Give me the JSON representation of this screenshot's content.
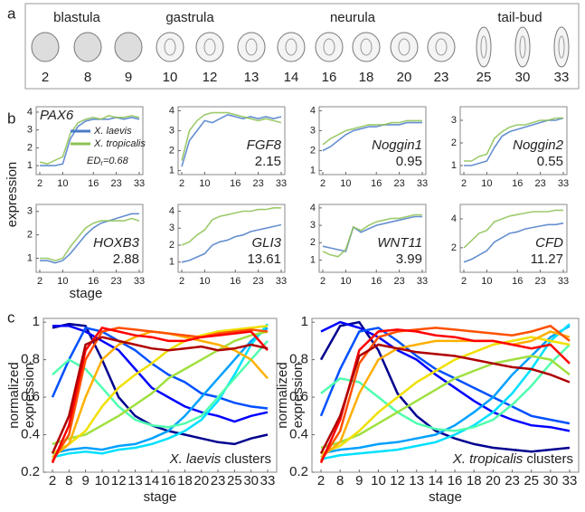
{
  "panel_labels": [
    "a",
    "b",
    "c"
  ],
  "stage_panel": {
    "phases": [
      "blastula",
      "gastrula",
      "neurula",
      "tail-bud"
    ],
    "stages": [
      "2",
      "8",
      "9",
      "10",
      "12",
      "13",
      "14",
      "16",
      "18",
      "20",
      "23",
      "25",
      "30",
      "33"
    ]
  },
  "b_ylabel": "expression",
  "chart_data": [
    {
      "type": "line",
      "gene": "PAX6",
      "annotation_parts": [
        "ED",
        "r",
        "=0.68"
      ],
      "categories": [
        "2",
        null,
        null,
        "10",
        null,
        null,
        null,
        "16",
        null,
        null,
        "23",
        null,
        null,
        "33"
      ],
      "ylim": [
        0.5,
        4.3
      ],
      "yticks": [
        1,
        2,
        3,
        4
      ],
      "series": [
        {
          "name": "X. laevis",
          "color": "#4a7bc8",
          "values": [
            1,
            1,
            1,
            1.1,
            2.5,
            3.2,
            3.5,
            3.6,
            3.6,
            3.6,
            3.7,
            3.6,
            3.7,
            3.6
          ]
        },
        {
          "name": "X. tropicalis",
          "color": "#8cc152",
          "values": [
            1.2,
            1.1,
            1.3,
            1.5,
            2.8,
            3.4,
            3.6,
            3.7,
            3.6,
            3.8,
            3.7,
            3.7,
            3.8,
            3.7
          ]
        }
      ]
    },
    {
      "type": "line",
      "gene": "FGF8",
      "annotation": "2.15",
      "categories": [
        "2",
        null,
        null,
        "10",
        null,
        null,
        null,
        "16",
        null,
        null,
        "23",
        null,
        null,
        "33"
      ],
      "ylim": [
        0.8,
        4.2
      ],
      "yticks": [
        1,
        2,
        3,
        4
      ],
      "series": [
        {
          "color": "#4a7bc8",
          "values": [
            1.2,
            2.5,
            3,
            3.5,
            3.4,
            3.6,
            3.8,
            3.7,
            3.6,
            3.7,
            3.6,
            3.7,
            3.6,
            3.7
          ]
        },
        {
          "color": "#8cc152",
          "values": [
            1.5,
            3,
            3.5,
            3.8,
            3.9,
            3.9,
            3.9,
            3.8,
            3.7,
            3.6,
            3.5,
            3.6,
            3.5,
            3.4
          ]
        }
      ]
    },
    {
      "type": "line",
      "gene": "Noggin1",
      "annotation": "0.95",
      "categories": [
        "2",
        null,
        null,
        "10",
        null,
        null,
        null,
        "16",
        null,
        null,
        "23",
        null,
        null,
        "33"
      ],
      "ylim": [
        0.8,
        4.2
      ],
      "yticks": [
        1,
        2,
        3,
        4
      ],
      "series": [
        {
          "color": "#4a7bc8",
          "values": [
            2,
            2.2,
            2.5,
            2.8,
            3,
            3.1,
            3.2,
            3.2,
            3.3,
            3.3,
            3.3,
            3.4,
            3.4,
            3.4
          ]
        },
        {
          "color": "#8cc152",
          "values": [
            2.3,
            2.6,
            2.8,
            3,
            3.1,
            3.2,
            3.3,
            3.3,
            3.3,
            3.4,
            3.4,
            3.5,
            3.5,
            3.5
          ]
        }
      ]
    },
    {
      "type": "line",
      "gene": "Noggin2",
      "annotation": "0.55",
      "categories": [
        "2",
        null,
        null,
        "10",
        null,
        null,
        null,
        "16",
        null,
        null,
        "23",
        null,
        null,
        "33"
      ],
      "ylim": [
        0.6,
        3.6
      ],
      "yticks": [
        1,
        2,
        3
      ],
      "series": [
        {
          "color": "#4a7bc8",
          "values": [
            1,
            1,
            1.1,
            1.2,
            1.8,
            2.3,
            2.5,
            2.6,
            2.7,
            2.8,
            2.9,
            3,
            3,
            3.1
          ]
        },
        {
          "color": "#8cc152",
          "values": [
            1.2,
            1.2,
            1.4,
            1.5,
            2.2,
            2.5,
            2.7,
            2.8,
            2.8,
            2.9,
            3,
            3,
            3.1,
            3.1
          ]
        }
      ]
    },
    {
      "type": "line",
      "gene": "HOXB3",
      "annotation": "2.88",
      "xlabel": "stage",
      "categories": [
        "2",
        null,
        null,
        "10",
        null,
        null,
        null,
        "16",
        null,
        null,
        "23",
        null,
        null,
        "33"
      ],
      "ylim": [
        0.4,
        3.3
      ],
      "yticks": [
        1,
        2,
        3
      ],
      "series": [
        {
          "color": "#4a7bc8",
          "values": [
            0.9,
            0.9,
            0.8,
            0.9,
            1.2,
            1.6,
            2,
            2.3,
            2.5,
            2.6,
            2.7,
            2.8,
            2.9,
            2.9
          ]
        },
        {
          "color": "#8cc152",
          "values": [
            1,
            1,
            0.9,
            1,
            1.5,
            1.9,
            2.3,
            2.5,
            2.6,
            2.6,
            2.6,
            2.6,
            2.7,
            2.6
          ]
        }
      ]
    },
    {
      "type": "line",
      "gene": "GLI3",
      "annotation": "13.61",
      "categories": [
        "2",
        null,
        null,
        "10",
        null,
        null,
        null,
        "16",
        null,
        null,
        "23",
        null,
        null,
        "33"
      ],
      "ylim": [
        0.4,
        4.4
      ],
      "yticks": [
        1,
        2,
        3,
        4
      ],
      "series": [
        {
          "color": "#4a7bc8",
          "values": [
            1,
            1.1,
            1.3,
            1.5,
            2,
            2.2,
            2.3,
            2.5,
            2.6,
            2.8,
            2.9,
            3,
            3.1,
            3.2
          ]
        },
        {
          "color": "#8cc152",
          "values": [
            2,
            2.2,
            2.6,
            2.9,
            3.5,
            3.7,
            3.8,
            3.9,
            4,
            4,
            4.1,
            4.1,
            4.2,
            4.2
          ]
        }
      ]
    },
    {
      "type": "line",
      "gene": "WNT11",
      "annotation": "3.99",
      "categories": [
        "2",
        null,
        null,
        "10",
        null,
        null,
        null,
        "16",
        null,
        null,
        "23",
        null,
        null,
        "33"
      ],
      "ylim": [
        0.3,
        4.2
      ],
      "yticks": [
        1,
        2,
        3,
        4
      ],
      "series": [
        {
          "color": "#4a7bc8",
          "values": [
            1.8,
            1.7,
            1.6,
            1.5,
            2.9,
            2.6,
            2.8,
            3,
            3.1,
            3.2,
            3.3,
            3.4,
            3.5,
            3.5
          ]
        },
        {
          "color": "#8cc152",
          "values": [
            1.5,
            1.3,
            1.2,
            1.6,
            2.9,
            2.7,
            3,
            3.2,
            3.3,
            3.4,
            3.4,
            3.5,
            3.6,
            3.6
          ]
        }
      ]
    },
    {
      "type": "line",
      "gene": "CFD",
      "annotation": "11.27",
      "categories": [
        "2",
        null,
        null,
        "10",
        null,
        null,
        null,
        "16",
        null,
        null,
        "23",
        null,
        null,
        "33"
      ],
      "ylim": [
        0.3,
        5
      ],
      "yticks": [
        2,
        4
      ],
      "series": [
        {
          "color": "#4a7bc8",
          "values": [
            1,
            1.2,
            1.5,
            1.8,
            2.4,
            2.7,
            3,
            3.1,
            3.3,
            3.4,
            3.5,
            3.6,
            3.6,
            3.7
          ]
        },
        {
          "color": "#8cc152",
          "values": [
            2,
            2.5,
            3,
            3.2,
            3.8,
            4,
            4.2,
            4.3,
            4.4,
            4.5,
            4.5,
            4.5,
            4.6,
            4.6
          ]
        }
      ]
    },
    {
      "type": "line",
      "title_parts": [
        "X. laevis",
        "clusters"
      ],
      "ylabel": [
        "normalized",
        "expression"
      ],
      "xlabel": "stage",
      "categories": [
        "2",
        "8",
        "9",
        "10",
        "12",
        "13",
        "14",
        "16",
        "18",
        "20",
        "23",
        "25",
        "30",
        "33"
      ],
      "ylim": [
        0.2,
        1.02
      ],
      "yticks": [
        0.2,
        0.4,
        0.6,
        0.8,
        1
      ],
      "series": [
        {
          "color": "#00008f",
          "values": [
            0.97,
            0.99,
            0.98,
            0.8,
            0.6,
            0.5,
            0.45,
            0.42,
            0.4,
            0.38,
            0.36,
            0.35,
            0.38,
            0.4
          ]
        },
        {
          "color": "#0000ff",
          "values": [
            0.98,
            0.98,
            0.95,
            0.9,
            0.85,
            0.75,
            0.65,
            0.6,
            0.55,
            0.52,
            0.5,
            0.47,
            0.5,
            0.52
          ]
        },
        {
          "color": "#0050ff",
          "values": [
            0.6,
            0.8,
            0.97,
            0.95,
            0.9,
            0.85,
            0.78,
            0.72,
            0.68,
            0.62,
            0.6,
            0.57,
            0.55,
            0.54
          ]
        },
        {
          "color": "#00a0ff",
          "values": [
            0.3,
            0.32,
            0.33,
            0.32,
            0.34,
            0.35,
            0.38,
            0.42,
            0.5,
            0.6,
            0.7,
            0.8,
            0.9,
            0.97
          ]
        },
        {
          "color": "#00e0ff",
          "values": [
            0.28,
            0.3,
            0.31,
            0.3,
            0.32,
            0.33,
            0.35,
            0.38,
            0.42,
            0.48,
            0.58,
            0.72,
            0.88,
            0.99
          ]
        },
        {
          "color": "#50ffaf",
          "values": [
            0.72,
            0.8,
            0.75,
            0.65,
            0.55,
            0.48,
            0.45,
            0.44,
            0.46,
            0.5,
            0.6,
            0.7,
            0.8,
            0.9
          ]
        },
        {
          "color": "#a0e040",
          "values": [
            0.35,
            0.38,
            0.4,
            0.45,
            0.5,
            0.56,
            0.62,
            0.7,
            0.75,
            0.8,
            0.85,
            0.9,
            0.93,
            0.95
          ]
        },
        {
          "color": "#f0e000",
          "values": [
            0.3,
            0.35,
            0.42,
            0.55,
            0.65,
            0.72,
            0.78,
            0.85,
            0.9,
            0.93,
            0.95,
            0.96,
            0.97,
            0.98
          ]
        },
        {
          "color": "#ffaf00",
          "values": [
            0.28,
            0.35,
            0.6,
            0.8,
            0.88,
            0.92,
            0.95,
            0.94,
            0.92,
            0.9,
            0.88,
            0.85,
            0.8,
            0.7
          ]
        },
        {
          "color": "#ff5000",
          "values": [
            0.26,
            0.4,
            0.8,
            0.95,
            0.97,
            0.96,
            0.95,
            0.94,
            0.93,
            0.92,
            0.94,
            0.95,
            0.96,
            0.95
          ]
        },
        {
          "color": "#ff0000",
          "values": [
            0.25,
            0.45,
            0.85,
            0.97,
            0.95,
            0.93,
            0.92,
            0.9,
            0.9,
            0.92,
            0.93,
            0.94,
            0.95,
            0.85
          ]
        },
        {
          "color": "#af0000",
          "values": [
            0.3,
            0.5,
            0.88,
            0.92,
            0.9,
            0.88,
            0.86,
            0.85,
            0.86,
            0.87,
            0.85,
            0.86,
            0.88,
            0.86
          ]
        }
      ]
    },
    {
      "type": "line",
      "title_parts": [
        "X. tropicalis",
        "clusters"
      ],
      "ylabel": [
        "normalized",
        "expression"
      ],
      "xlabel": "stage",
      "categories": [
        "2",
        "8",
        "9",
        "10",
        "12",
        "13",
        "14",
        "16",
        "18",
        "20",
        "23",
        "25",
        "30",
        "33"
      ],
      "ylim": [
        0.2,
        1.02
      ],
      "yticks": [
        0.2,
        0.4,
        0.6,
        0.8,
        1
      ],
      "series": [
        {
          "color": "#00008f",
          "values": [
            0.8,
            0.98,
            1,
            0.85,
            0.62,
            0.5,
            0.42,
            0.38,
            0.35,
            0.33,
            0.32,
            0.31,
            0.32,
            0.33
          ]
        },
        {
          "color": "#0000ff",
          "values": [
            0.95,
            1,
            0.97,
            0.92,
            0.85,
            0.8,
            0.72,
            0.65,
            0.58,
            0.52,
            0.48,
            0.45,
            0.44,
            0.42
          ]
        },
        {
          "color": "#0050ff",
          "values": [
            0.5,
            0.75,
            0.95,
            0.97,
            0.9,
            0.82,
            0.75,
            0.7,
            0.65,
            0.6,
            0.55,
            0.5,
            0.48,
            0.46
          ]
        },
        {
          "color": "#00a0ff",
          "values": [
            0.3,
            0.32,
            0.33,
            0.35,
            0.36,
            0.38,
            0.4,
            0.45,
            0.52,
            0.6,
            0.72,
            0.82,
            0.92,
            0.98
          ]
        },
        {
          "color": "#00e0ff",
          "values": [
            0.27,
            0.29,
            0.3,
            0.31,
            0.32,
            0.34,
            0.36,
            0.4,
            0.45,
            0.52,
            0.62,
            0.75,
            0.9,
            0.99
          ]
        },
        {
          "color": "#50ffaf",
          "values": [
            0.62,
            0.7,
            0.68,
            0.6,
            0.52,
            0.46,
            0.43,
            0.42,
            0.44,
            0.48,
            0.56,
            0.66,
            0.78,
            0.88
          ]
        },
        {
          "color": "#a0e040",
          "values": [
            0.33,
            0.36,
            0.4,
            0.46,
            0.52,
            0.58,
            0.64,
            0.7,
            0.74,
            0.78,
            0.8,
            0.82,
            0.8,
            0.72
          ]
        },
        {
          "color": "#f0e000",
          "values": [
            0.3,
            0.34,
            0.42,
            0.52,
            0.6,
            0.68,
            0.74,
            0.8,
            0.84,
            0.88,
            0.9,
            0.92,
            0.9,
            0.88
          ]
        },
        {
          "color": "#ffaf00",
          "values": [
            0.28,
            0.36,
            0.62,
            0.8,
            0.86,
            0.88,
            0.9,
            0.9,
            0.9,
            0.9,
            0.88,
            0.9,
            0.95,
            0.92
          ]
        },
        {
          "color": "#ff5000",
          "values": [
            0.26,
            0.42,
            0.78,
            0.92,
            0.95,
            0.96,
            0.97,
            0.96,
            0.95,
            0.94,
            0.93,
            0.95,
            0.98,
            0.9
          ]
        },
        {
          "color": "#ff0000",
          "values": [
            0.25,
            0.48,
            0.85,
            0.95,
            0.96,
            0.95,
            0.93,
            0.92,
            0.9,
            0.9,
            0.88,
            0.86,
            0.88,
            0.78
          ]
        },
        {
          "color": "#af0000",
          "values": [
            0.3,
            0.5,
            0.82,
            0.88,
            0.86,
            0.84,
            0.83,
            0.82,
            0.8,
            0.78,
            0.76,
            0.75,
            0.72,
            0.68
          ]
        }
      ]
    }
  ]
}
